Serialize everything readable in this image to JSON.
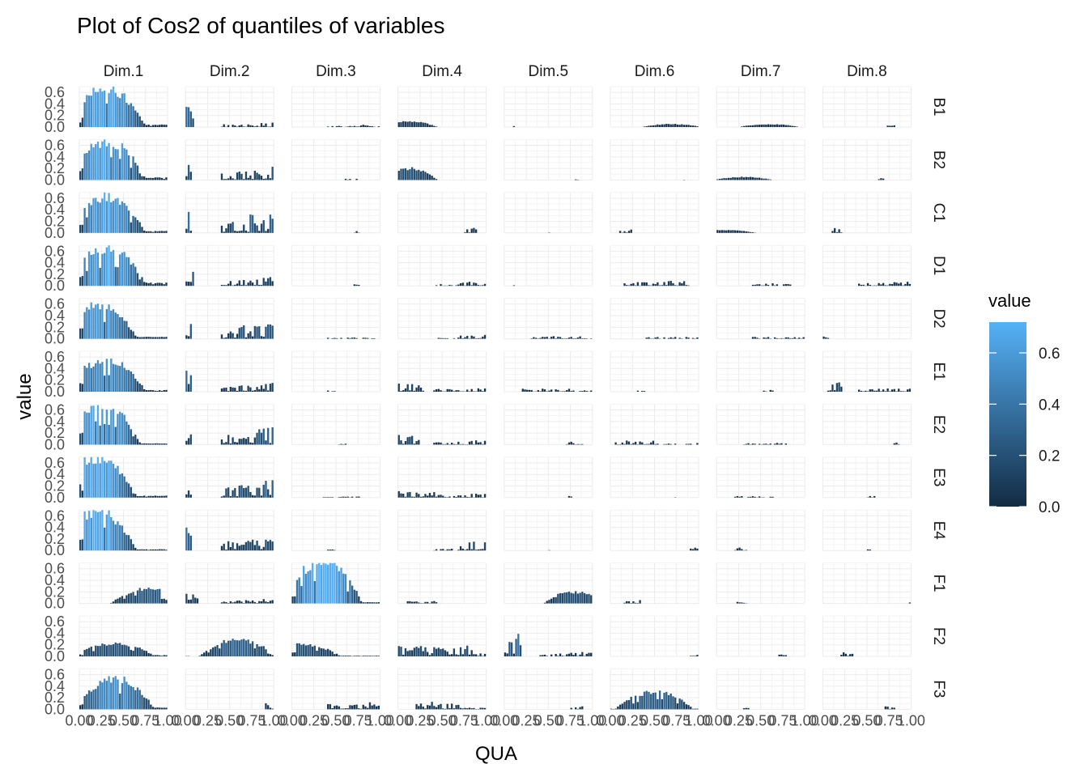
{
  "chart_data": {
    "type": "bar",
    "facet": "grid",
    "title": "Plot of Cos2 of quantiles of variables",
    "xlabel": "QUA",
    "ylabel": "value",
    "columns": [
      "Dim.1",
      "Dim.2",
      "Dim.3",
      "Dim.4",
      "Dim.5",
      "Dim.6",
      "Dim.7",
      "Dim.8"
    ],
    "rows": [
      "B1",
      "B2",
      "C1",
      "D1",
      "D2",
      "E1",
      "E2",
      "E3",
      "E4",
      "F1",
      "F2",
      "F3"
    ],
    "x_ticks": [
      "0.00",
      "0.25",
      "0.50",
      "0.75",
      "1.00"
    ],
    "y_ticks": [
      "0.0",
      "0.2",
      "0.4",
      "0.6"
    ],
    "xlim": [
      0,
      1
    ],
    "ylim": [
      0,
      0.7
    ],
    "n_quantiles": 40,
    "legend": {
      "title": "value",
      "position": "right",
      "ticks": [
        "0.0",
        "0.2",
        "0.4",
        "0.6"
      ],
      "range": [
        0,
        0.72
      ],
      "low_color": "#132B43",
      "high_color": "#56B1F7"
    },
    "grid": true,
    "panel_profiles": {
      "B1": [
        [
          1,
          0.62,
          0.3,
          4,
          33,
          0.2,
          1.3
        ],
        [
          2,
          0.4,
          0.0,
          1,
          4,
          0.05,
          1.0
        ],
        [
          2,
          0.04,
          0.8,
          1,
          3,
          0.02,
          0.5
        ],
        [
          3,
          0.1,
          0.1,
          2,
          14,
          0.0,
          0.8
        ],
        [
          4,
          0.02,
          0.1,
          1,
          1,
          0.0,
          0.0
        ],
        [
          5,
          0.05,
          0.7,
          2,
          4,
          0.02,
          0.5
        ],
        [
          6,
          0.05,
          0.6,
          2,
          27,
          0.05,
          0.7
        ],
        [
          7,
          0.03,
          0.7,
          1,
          5,
          0.0,
          0.5
        ]
      ],
      "B2": [
        [
          1,
          0.62,
          0.3,
          3,
          34,
          0.2,
          1.3
        ],
        [
          2,
          0.35,
          0.0,
          1,
          3,
          0.15,
          0.8
        ],
        [
          2,
          0.02,
          0.6,
          1,
          6,
          0.0,
          0.6
        ],
        [
          3,
          0.2,
          0.1,
          2,
          14,
          0.0,
          0.8
        ],
        [
          4,
          0.03,
          0.8,
          1,
          2,
          0.0,
          0.5
        ],
        [
          5,
          0.03,
          0.8,
          1,
          2,
          0.0,
          0.5
        ],
        [
          6,
          0.05,
          0.3,
          2,
          24,
          0.03,
          0.7
        ],
        [
          7,
          0.03,
          0.6,
          1,
          4,
          0.0,
          0.5
        ]
      ],
      "C1": [
        [
          1,
          0.6,
          0.3,
          4,
          34,
          0.15,
          1.3
        ],
        [
          2,
          0.35,
          0.0,
          1,
          3,
          0.25,
          0.8
        ],
        [
          2,
          0.03,
          0.7,
          1,
          3,
          0.0,
          0.5
        ],
        [
          3,
          0.08,
          0.75,
          1,
          6,
          0.0,
          0.6
        ],
        [
          4,
          0.01,
          0.5,
          1,
          1,
          0.0,
          0.0
        ],
        [
          5,
          0.06,
          0.1,
          1,
          6,
          0.0,
          0.6
        ],
        [
          6,
          0.05,
          0.1,
          2,
          20,
          0.0,
          0.7
        ],
        [
          7,
          0.08,
          0.1,
          1,
          5,
          0.0,
          0.5
        ]
      ],
      "D1": [
        [
          1,
          0.6,
          0.3,
          4,
          34,
          0.25,
          1.3
        ],
        [
          2,
          0.4,
          0.0,
          1,
          4,
          0.1,
          0.8
        ],
        [
          2,
          0.03,
          0.7,
          1,
          3,
          0.0,
          0.5
        ],
        [
          3,
          0.08,
          0.7,
          1,
          15,
          0.03,
          0.7
        ],
        [
          4,
          0.01,
          0.1,
          1,
          1,
          0.0,
          0.0
        ],
        [
          5,
          0.08,
          0.15,
          1,
          30,
          0.0,
          0.7
        ],
        [
          6,
          0.04,
          0.4,
          1,
          18,
          0.0,
          0.6
        ],
        [
          7,
          0.05,
          0.9,
          1,
          5,
          0.05,
          0.5
        ]
      ],
      "D2": [
        [
          1,
          0.55,
          0.2,
          4,
          34,
          0.15,
          1.3
        ],
        [
          2,
          0.35,
          0.0,
          1,
          3,
          0.2,
          0.8
        ],
        [
          2,
          0.02,
          0.4,
          1,
          24,
          0.0,
          0.6
        ],
        [
          3,
          0.08,
          0.7,
          1,
          20,
          0.02,
          0.6
        ],
        [
          4,
          0.05,
          0.3,
          1,
          24,
          0.01,
          0.6
        ],
        [
          5,
          0.03,
          0.4,
          1,
          26,
          0.01,
          0.6
        ],
        [
          6,
          0.03,
          0.4,
          1,
          24,
          0.0,
          0.6
        ],
        [
          7,
          0.04,
          0.0,
          1,
          3,
          0.0,
          0.5
        ]
      ],
      "E1": [
        [
          1,
          0.52,
          0.3,
          4,
          34,
          0.15,
          1.3
        ],
        [
          2,
          0.35,
          0.0,
          1,
          3,
          0.1,
          0.8
        ],
        [
          2,
          0.02,
          0.4,
          1,
          4,
          0.0,
          0.5
        ],
        [
          3,
          0.15,
          0.0,
          1,
          12,
          0.05,
          0.7
        ],
        [
          4,
          0.06,
          0.2,
          1,
          22,
          0.02,
          0.6
        ],
        [
          5,
          0.02,
          0.3,
          1,
          4,
          0.0,
          0.5
        ],
        [
          6,
          0.03,
          0.5,
          1,
          6,
          0.0,
          0.5
        ],
        [
          7,
          0.15,
          0.05,
          1,
          7,
          0.05,
          0.8
        ]
      ],
      "E2": [
        [
          1,
          0.65,
          0.25,
          3,
          34,
          0.1,
          1.3
        ],
        [
          2,
          0.35,
          0.0,
          1,
          3,
          0.25,
          0.8
        ],
        [
          2,
          0.02,
          0.5,
          1,
          5,
          0.0,
          0.5
        ],
        [
          3,
          0.15,
          0.0,
          1,
          10,
          0.05,
          0.7
        ],
        [
          4,
          0.05,
          0.7,
          1,
          8,
          0.0,
          0.6
        ],
        [
          5,
          0.08,
          0.05,
          1,
          18,
          0.02,
          0.6
        ],
        [
          6,
          0.03,
          0.3,
          1,
          20,
          0.0,
          0.6
        ],
        [
          7,
          0.04,
          0.8,
          1,
          3,
          0.0,
          0.5
        ]
      ],
      "E3": [
        [
          1,
          0.65,
          0.2,
          3,
          34,
          0.15,
          1.3
        ],
        [
          2,
          0.3,
          0.0,
          1,
          3,
          0.2,
          0.8
        ],
        [
          2,
          0.02,
          0.3,
          1,
          20,
          0.0,
          0.6
        ],
        [
          3,
          0.1,
          0.0,
          1,
          18,
          0.05,
          0.7
        ],
        [
          4,
          0.03,
          0.7,
          1,
          3,
          0.0,
          0.5
        ],
        [
          5,
          0.03,
          0.7,
          1,
          3,
          0.0,
          0.5
        ],
        [
          6,
          0.03,
          0.2,
          1,
          18,
          0.0,
          0.6
        ],
        [
          7,
          0.04,
          0.5,
          1,
          4,
          0.0,
          0.5
        ]
      ],
      "E4": [
        [
          1,
          0.65,
          0.2,
          3,
          34,
          0.1,
          1.3
        ],
        [
          2,
          0.35,
          0.0,
          1,
          3,
          0.15,
          0.8
        ],
        [
          2,
          0.02,
          0.4,
          1,
          4,
          0.0,
          0.5
        ],
        [
          3,
          0.15,
          0.7,
          1,
          14,
          0.03,
          0.7
        ],
        [
          4,
          0.01,
          0.5,
          1,
          1,
          0.0,
          0.0
        ],
        [
          5,
          0.05,
          0.9,
          1,
          6,
          0.0,
          0.5
        ],
        [
          6,
          0.05,
          0.2,
          1,
          6,
          0.0,
          0.5
        ],
        [
          7,
          0.02,
          0.5,
          1,
          2,
          0.0,
          0.5
        ]
      ],
      "F1": [
        [
          1,
          0.25,
          0.8,
          4,
          20,
          0.0,
          1.0
        ],
        [
          2,
          0.15,
          0.0,
          1,
          6,
          0.05,
          0.7
        ],
        [
          3,
          0.72,
          0.35,
          4,
          30,
          0.1,
          1.2
        ],
        [
          4,
          0.04,
          0.1,
          1,
          14,
          0.0,
          0.6
        ],
        [
          5,
          0.2,
          0.8,
          2,
          30,
          0.0,
          0.8
        ],
        [
          6,
          0.06,
          0.15,
          1,
          8,
          0.0,
          0.5
        ],
        [
          7,
          0.03,
          0.2,
          1,
          6,
          0.0,
          0.5
        ],
        [
          8,
          0.04,
          0.95,
          1,
          4,
          0.0,
          0.5
        ]
      ],
      "F2": [
        [
          1,
          0.2,
          0.4,
          4,
          34,
          0.1,
          1.2
        ],
        [
          2,
          0.28,
          0.6,
          4,
          34,
          0.02,
          1.1
        ],
        [
          3,
          0.2,
          0.1,
          3,
          34,
          0.05,
          1.1
        ],
        [
          4,
          0.18,
          0.0,
          1,
          34,
          0.05,
          0.9
        ],
        [
          5,
          0.38,
          0.0,
          1,
          8,
          0.05,
          1.0
        ],
        [
          6,
          0.05,
          0.9,
          1,
          4,
          0.0,
          0.5
        ],
        [
          7,
          0.04,
          0.7,
          1,
          4,
          0.0,
          0.5
        ],
        [
          8,
          0.08,
          0.2,
          1,
          6,
          0.0,
          0.5
        ]
      ],
      "F3": [
        [
          1,
          0.5,
          0.4,
          3,
          32,
          0.15,
          1.2
        ],
        [
          2,
          0.15,
          0.9,
          1,
          24,
          0.0,
          0.6
        ],
        [
          3,
          0.12,
          0.4,
          1,
          34,
          0.05,
          0.8
        ],
        [
          4,
          0.12,
          0.2,
          1,
          20,
          0.02,
          0.6
        ],
        [
          5,
          0.05,
          0.75,
          1,
          6,
          0.0,
          0.5
        ],
        [
          6,
          0.28,
          0.5,
          4,
          34,
          0.05,
          1.1
        ],
        [
          7,
          0.03,
          0.3,
          1,
          4,
          0.0,
          0.5
        ],
        [
          8,
          0.06,
          0.7,
          1,
          5,
          0.0,
          0.5
        ]
      ]
    }
  }
}
